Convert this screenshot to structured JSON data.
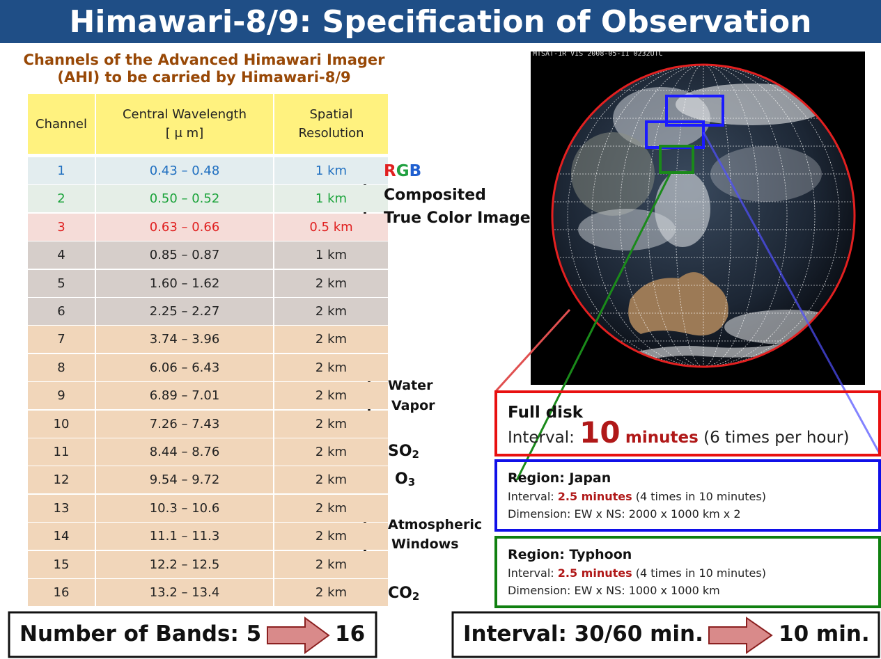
{
  "title": "Himawari-8/9: Specification of Observation",
  "table": {
    "caption": [
      "Channels of the Advanced Himawari Imager",
      "(AHI) to be carried by Himawari-8/9"
    ],
    "header": [
      [
        "Channel"
      ],
      [
        "Central Wavelength",
        "[ μ m]"
      ],
      [
        "Spatial",
        "Resolution"
      ]
    ],
    "rows": [
      [
        "1",
        "0.43 – 0.48",
        "1 km"
      ],
      [
        "2",
        "0.50 – 0.52",
        "1 km"
      ],
      [
        "3",
        "0.63 – 0.66",
        "0.5 km"
      ],
      [
        "4",
        "0.85 – 0.87",
        "1 km"
      ],
      [
        "5",
        "1.60 – 1.62",
        "2 km"
      ],
      [
        "6",
        "2.25 – 2.27",
        "2 km"
      ],
      [
        "7",
        "3.74 – 3.96",
        "2 km"
      ],
      [
        "8",
        "6.06 – 6.43",
        "2 km"
      ],
      [
        "9",
        "6.89 – 7.01",
        "2 km"
      ],
      [
        "10",
        "7.26 – 7.43",
        "2 km"
      ],
      [
        "11",
        "8.44 – 8.76",
        "2 km"
      ],
      [
        "12",
        "9.54 – 9.72",
        "2 km"
      ],
      [
        "13",
        "10.3 – 10.6",
        "2 km"
      ],
      [
        "14",
        "11.1 – 11.3",
        "2 km"
      ],
      [
        "15",
        "12.2 – 12.5",
        "2 km"
      ],
      [
        "16",
        "13.2 – 13.4",
        "2 km"
      ]
    ]
  },
  "annotations": {
    "rgb": {
      "letters": [
        "R",
        "G",
        "B"
      ],
      "lines": [
        "Composited",
        "True Color Image"
      ]
    },
    "water_vapor": [
      "Water",
      "Vapor"
    ],
    "so2": [
      "SO",
      "2"
    ],
    "o3": [
      "O",
      "3"
    ],
    "atmospheric_windows": [
      "Atmospheric",
      "Windows"
    ],
    "co2": [
      "CO",
      "2"
    ]
  },
  "image_label": "MTSAT-1R VIS 2008-05-11 0232UTC",
  "regions": {
    "full_disk": {
      "title": "Full disk",
      "interval_label": "Interval:",
      "interval_value": "10",
      "interval_unit": "minutes",
      "interval_note": "(6 times per hour)"
    },
    "japan": {
      "title": "Region: Japan",
      "interval_label": "Interval:",
      "interval_value": "2.5 minutes",
      "interval_note": "(4 times in 10 minutes)",
      "dimension": "Dimension: EW x NS: 2000 x 1000 km x 2"
    },
    "typhoon": {
      "title": "Region: Typhoon",
      "interval_label": "Interval:",
      "interval_value": "2.5 minutes",
      "interval_note": "(4 times in 10 minutes)",
      "dimension": "Dimension: EW x NS: 1000 x 1000 km"
    }
  },
  "summary": {
    "bands": {
      "label": "Number of Bands: 5",
      "to": "16"
    },
    "interval": {
      "label": "Interval: 30/60 min.",
      "to": "10 min."
    }
  }
}
